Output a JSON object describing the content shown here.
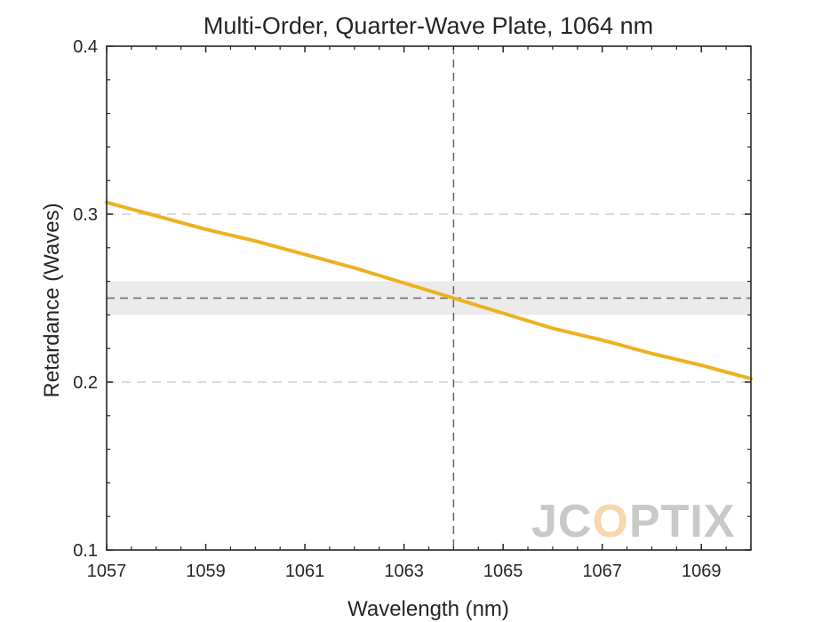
{
  "chart_data": {
    "type": "line",
    "title": "Multi-Order, Quarter-Wave Plate, 1064 nm",
    "xlabel": "Wavelength (nm)",
    "ylabel": "Retardance (Waves)",
    "xlim": [
      1057,
      1070
    ],
    "ylim": [
      0.1,
      0.4
    ],
    "xticks": [
      1057,
      1059,
      1061,
      1063,
      1065,
      1067,
      1069
    ],
    "yticks": [
      0.1,
      0.2,
      0.3,
      0.4
    ],
    "grid": "dashed horizontal lines at 0.2 and 0.3",
    "target_wavelength": 1064,
    "target_retardance": 0.25,
    "tolerance_band": [
      0.24,
      0.26
    ],
    "series": [
      {
        "color": "#EDB120",
        "x": [
          1057,
          1058,
          1059,
          1060,
          1061,
          1062,
          1063,
          1064,
          1065,
          1066,
          1067,
          1068,
          1069,
          1070
        ],
        "y": [
          0.307,
          0.299,
          0.291,
          0.284,
          0.276,
          0.268,
          0.259,
          0.25,
          0.241,
          0.232,
          0.225,
          0.217,
          0.21,
          0.202
        ]
      }
    ],
    "colors": {
      "line": "#EDB120",
      "band": "#ebebeb",
      "grid": "#d0d0d0",
      "reference": "#666666",
      "axes": "#262626"
    }
  },
  "watermark": {
    "text": "JCOPTIX",
    "color": "#c9c9c9",
    "accent": "#f6d7ae"
  }
}
